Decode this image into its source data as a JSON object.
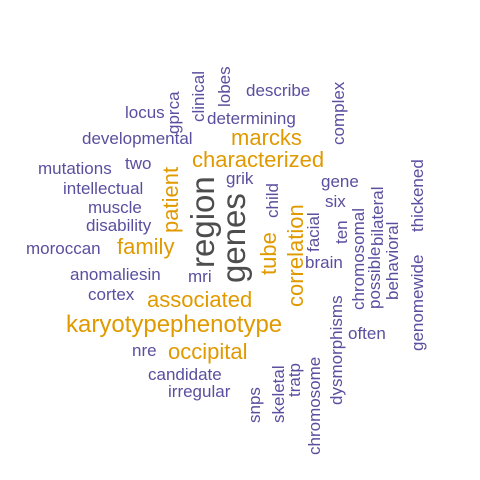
{
  "colors": {
    "primary": "#5a4f9e",
    "accent": "#e09a00",
    "dark": "#4d4d4d"
  },
  "words": [
    {
      "key": "gprca",
      "text": "gprca",
      "color": "primary"
    },
    {
      "key": "clinical",
      "text": "clinical",
      "color": "primary"
    },
    {
      "key": "lobes",
      "text": "lobes",
      "color": "primary"
    },
    {
      "key": "describe",
      "text": "describe",
      "color": "primary"
    },
    {
      "key": "complex",
      "text": "complex",
      "color": "primary"
    },
    {
      "key": "locus",
      "text": "locus",
      "color": "primary"
    },
    {
      "key": "determining",
      "text": "determining",
      "color": "primary"
    },
    {
      "key": "developmental",
      "text": "developmental",
      "color": "primary"
    },
    {
      "key": "marcks",
      "text": "marcks",
      "color": "accent"
    },
    {
      "key": "characterized",
      "text": "characterized",
      "color": "accent"
    },
    {
      "key": "mutations",
      "text": "mutations",
      "color": "primary"
    },
    {
      "key": "two",
      "text": "two",
      "color": "primary"
    },
    {
      "key": "patient",
      "text": "patient",
      "color": "accent"
    },
    {
      "key": "region",
      "text": "region",
      "color": "dark"
    },
    {
      "key": "genes",
      "text": "genes",
      "color": "dark"
    },
    {
      "key": "grik",
      "text": "grik",
      "color": "primary"
    },
    {
      "key": "gene",
      "text": "gene",
      "color": "primary"
    },
    {
      "key": "intellectual",
      "text": "intellectual",
      "color": "primary"
    },
    {
      "key": "muscle",
      "text": "muscle",
      "color": "primary"
    },
    {
      "key": "disability",
      "text": "disability",
      "color": "primary"
    },
    {
      "key": "child",
      "text": "child",
      "color": "primary"
    },
    {
      "key": "six",
      "text": "six",
      "color": "primary"
    },
    {
      "key": "bilateral",
      "text": "bilateral",
      "color": "primary"
    },
    {
      "key": "thickened",
      "text": "thickened",
      "color": "primary"
    },
    {
      "key": "moroccan",
      "text": "moroccan",
      "color": "primary"
    },
    {
      "key": "family",
      "text": "family",
      "color": "accent"
    },
    {
      "key": "tube",
      "text": "tube",
      "color": "accent"
    },
    {
      "key": "correlation",
      "text": "correlation",
      "color": "accent"
    },
    {
      "key": "facial",
      "text": "facial",
      "color": "primary"
    },
    {
      "key": "ten",
      "text": "ten",
      "color": "primary"
    },
    {
      "key": "chromosomal",
      "text": "chromosomal",
      "color": "primary"
    },
    {
      "key": "possible",
      "text": "possible",
      "color": "primary"
    },
    {
      "key": "behavioral",
      "text": "behavioral",
      "color": "primary"
    },
    {
      "key": "genomewide",
      "text": "genomewide",
      "color": "primary"
    },
    {
      "key": "brain",
      "text": "brain",
      "color": "primary"
    },
    {
      "key": "anomaliesin",
      "text": "anomaliesin",
      "color": "primary"
    },
    {
      "key": "mri",
      "text": "mri",
      "color": "primary"
    },
    {
      "key": "cortex",
      "text": "cortex",
      "color": "primary"
    },
    {
      "key": "associated",
      "text": "associated",
      "color": "accent"
    },
    {
      "key": "karyotypephenotype",
      "text": "karyotypephenotype",
      "color": "accent"
    },
    {
      "key": "dysmorphisms",
      "text": "dysmorphisms",
      "color": "primary"
    },
    {
      "key": "often",
      "text": "often",
      "color": "primary"
    },
    {
      "key": "nre",
      "text": "nre",
      "color": "primary"
    },
    {
      "key": "occipital",
      "text": "occipital",
      "color": "accent"
    },
    {
      "key": "tratp",
      "text": "tratp",
      "color": "primary"
    },
    {
      "key": "skeletal",
      "text": "skeletal",
      "color": "primary"
    },
    {
      "key": "chromosome",
      "text": "chromosome",
      "color": "primary"
    },
    {
      "key": "candidate",
      "text": "candidate",
      "color": "primary"
    },
    {
      "key": "irregular",
      "text": "irregular",
      "color": "primary"
    },
    {
      "key": "snps",
      "text": "snps",
      "color": "primary"
    }
  ]
}
